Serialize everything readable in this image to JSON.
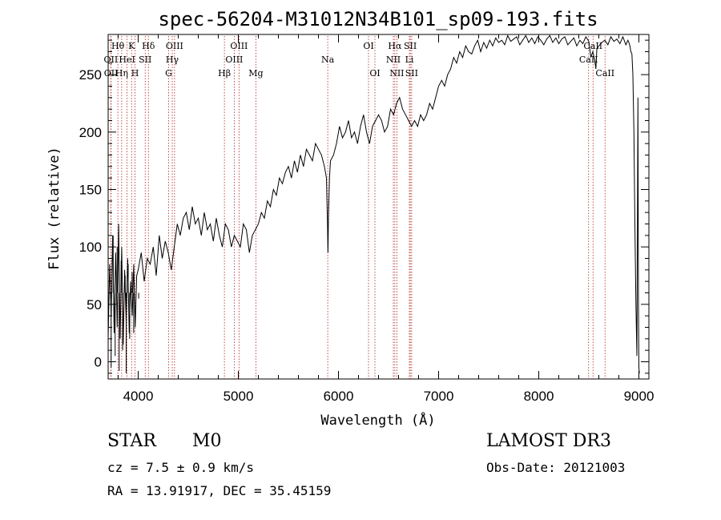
{
  "info": {
    "object_type": "STAR",
    "spectral_class": "M0",
    "survey": "LAMOST DR3",
    "cz": "cz = 7.5 ± 0.9 km/s",
    "obs_date": "Obs-Date: 20121003",
    "radec": "RA =  13.91917, DEC =  35.45159"
  },
  "chart_data": {
    "type": "line",
    "title": "spec-56204-M31012N34B101_sp09-193.fits",
    "xlabel": "Wavelength (Å)",
    "ylabel": "Flux (relative)",
    "xlim": [
      3700,
      9100
    ],
    "ylim": [
      -15,
      285
    ],
    "xticks": [
      4000,
      5000,
      6000,
      7000,
      8000,
      9000
    ],
    "yticks": [
      0,
      50,
      100,
      150,
      200,
      250
    ],
    "line_color": "#000000",
    "marker_color": "#b22222",
    "series": [
      {
        "name": "spectrum",
        "x": [
          3700,
          3715,
          3730,
          3745,
          3760,
          3775,
          3790,
          3805,
          3820,
          3835,
          3850,
          3865,
          3880,
          3895,
          3910,
          3925,
          3940,
          3955,
          3970,
          3985,
          4000,
          4030,
          4060,
          4090,
          4120,
          4150,
          4180,
          4210,
          4240,
          4270,
          4300,
          4330,
          4360,
          4390,
          4420,
          4450,
          4480,
          4510,
          4540,
          4570,
          4600,
          4630,
          4660,
          4690,
          4720,
          4750,
          4780,
          4810,
          4840,
          4870,
          4900,
          4930,
          4960,
          4990,
          5020,
          5050,
          5080,
          5110,
          5140,
          5170,
          5200,
          5230,
          5260,
          5290,
          5320,
          5350,
          5380,
          5410,
          5440,
          5470,
          5500,
          5530,
          5560,
          5590,
          5620,
          5650,
          5680,
          5710,
          5740,
          5770,
          5800,
          5830,
          5860,
          5880,
          5890,
          5895,
          5900,
          5910,
          5920,
          5950,
          5980,
          6010,
          6040,
          6070,
          6100,
          6130,
          6160,
          6190,
          6220,
          6250,
          6280,
          6310,
          6340,
          6370,
          6400,
          6430,
          6460,
          6490,
          6520,
          6550,
          6580,
          6610,
          6640,
          6670,
          6700,
          6730,
          6760,
          6790,
          6820,
          6850,
          6880,
          6910,
          6940,
          6970,
          7000,
          7030,
          7060,
          7090,
          7120,
          7150,
          7180,
          7210,
          7240,
          7270,
          7300,
          7330,
          7360,
          7390,
          7420,
          7450,
          7480,
          7510,
          7540,
          7570,
          7600,
          7630,
          7660,
          7690,
          7720,
          7750,
          7780,
          7810,
          7840,
          7870,
          7900,
          7930,
          7960,
          7990,
          8020,
          8050,
          8080,
          8110,
          8140,
          8170,
          8200,
          8230,
          8260,
          8290,
          8320,
          8350,
          8380,
          8410,
          8440,
          8470,
          8500,
          8520,
          8540,
          8560,
          8570,
          8580,
          8600,
          8630,
          8660,
          8690,
          8720,
          8750,
          8780,
          8810,
          8840,
          8870,
          8890,
          8900,
          8910,
          8920,
          8930,
          8940,
          8950,
          8960,
          8970,
          8980,
          8990,
          8995,
          9000,
          9005
        ],
        "y": [
          20,
          85,
          40,
          110,
          25,
          95,
          30,
          120,
          20,
          100,
          15,
          80,
          35,
          90,
          25,
          70,
          40,
          85,
          30,
          75,
          80,
          95,
          70,
          90,
          85,
          100,
          75,
          110,
          90,
          105,
          95,
          80,
          100,
          120,
          110,
          125,
          130,
          115,
          135,
          120,
          125,
          110,
          130,
          115,
          120,
          105,
          125,
          110,
          100,
          120,
          115,
          100,
          110,
          105,
          100,
          120,
          115,
          95,
          110,
          115,
          120,
          130,
          125,
          140,
          135,
          150,
          145,
          160,
          155,
          165,
          170,
          160,
          175,
          165,
          180,
          170,
          185,
          180,
          175,
          190,
          185,
          180,
          170,
          160,
          120,
          95,
          125,
          160,
          175,
          180,
          190,
          205,
          195,
          200,
          210,
          195,
          200,
          190,
          205,
          215,
          200,
          190,
          205,
          210,
          215,
          210,
          200,
          205,
          220,
          215,
          225,
          230,
          220,
          215,
          210,
          205,
          210,
          205,
          215,
          210,
          215,
          225,
          220,
          230,
          240,
          245,
          240,
          250,
          255,
          265,
          260,
          270,
          265,
          275,
          270,
          268,
          275,
          280,
          270,
          278,
          273,
          280,
          275,
          282,
          278,
          280,
          276,
          284,
          279,
          281,
          283,
          276,
          280,
          284,
          278,
          282,
          277,
          283,
          280,
          276,
          281,
          284,
          278,
          282,
          277,
          281,
          283,
          276,
          279,
          282,
          275,
          280,
          277,
          283,
          279,
          265,
          270,
          262,
          255,
          272,
          275,
          278,
          280,
          276,
          283,
          279,
          281,
          277,
          283,
          276,
          280,
          278,
          275,
          270,
          268,
          250,
          200,
          120,
          50,
          5,
          230,
          60,
          -5,
          -10
        ],
        "spikes": [
          [
            3730,
            -5
          ],
          [
            3750,
            110
          ],
          [
            3770,
            5
          ],
          [
            3790,
            100
          ],
          [
            3810,
            -8
          ],
          [
            3830,
            88
          ],
          [
            3845,
            10
          ],
          [
            3870,
            75
          ],
          [
            3880,
            -10
          ],
          [
            3900,
            85
          ],
          [
            3915,
            20
          ],
          [
            3940,
            78
          ],
          [
            3955,
            25
          ],
          [
            4005,
            55
          ]
        ]
      }
    ],
    "lines": [
      {
        "name": "Hθ",
        "wl": 3797,
        "row": 1
      },
      {
        "name": "OII",
        "wl": 3727,
        "row": 2
      },
      {
        "name": "OII",
        "wl": 3729,
        "row": 3
      },
      {
        "name": "K",
        "wl": 3934,
        "row": 1
      },
      {
        "name": "HeI",
        "wl": 3889,
        "row": 2
      },
      {
        "name": "Hη",
        "wl": 3835,
        "row": 3
      },
      {
        "name": "Hδ",
        "wl": 4102,
        "row": 1
      },
      {
        "name": "SII",
        "wl": 4070,
        "row": 2
      },
      {
        "name": "H",
        "wl": 3968,
        "row": 3
      },
      {
        "name": "OIII",
        "wl": 4363,
        "row": 1
      },
      {
        "name": "Hγ",
        "wl": 4340,
        "row": 2
      },
      {
        "name": "G",
        "wl": 4304,
        "row": 3
      },
      {
        "name": "OIII",
        "wl": 5007,
        "row": 1
      },
      {
        "name": "OIII",
        "wl": 4959,
        "row": 2
      },
      {
        "name": "Hβ",
        "wl": 4861,
        "row": 3
      },
      {
        "name": "Mg",
        "wl": 5175,
        "row": 3
      },
      {
        "name": "Na",
        "wl": 5893,
        "row": 2
      },
      {
        "name": "OI",
        "wl": 6300,
        "row": 1
      },
      {
        "name": "OI",
        "wl": 6364,
        "row": 3
      },
      {
        "name": "Hα",
        "wl": 6563,
        "row": 1
      },
      {
        "name": "NII",
        "wl": 6548,
        "row": 2
      },
      {
        "name": "NII",
        "wl": 6583,
        "row": 3
      },
      {
        "name": "SII",
        "wl": 6717,
        "row": 1
      },
      {
        "name": "Li",
        "wl": 6708,
        "row": 2
      },
      {
        "name": "SII",
        "wl": 6731,
        "row": 3
      },
      {
        "name": "CaII",
        "wl": 8542,
        "row": 1
      },
      {
        "name": "CaII",
        "wl": 8498,
        "row": 2
      },
      {
        "name": "CaII",
        "wl": 8662,
        "row": 3
      }
    ]
  }
}
